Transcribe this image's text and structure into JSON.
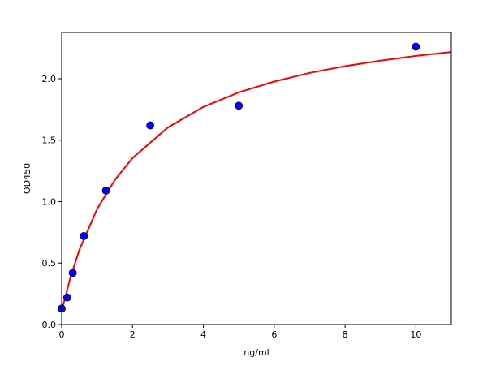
{
  "chart_data": {
    "type": "scatter",
    "title": "",
    "xlabel": "ng/ml",
    "ylabel": "OD450",
    "xlim": [
      0,
      11
    ],
    "ylim": [
      0,
      2.376
    ],
    "xticks": [
      0,
      2,
      4,
      6,
      8,
      10
    ],
    "yticks": [
      0.0,
      0.5,
      1.0,
      1.5,
      2.0
    ],
    "xtick_labels": [
      "0",
      "2",
      "4",
      "6",
      "8",
      "10"
    ],
    "ytick_labels": [
      "0.0",
      "0.5",
      "1.0",
      "1.5",
      "2.0"
    ],
    "grid": false,
    "series": [
      {
        "type": "scatter",
        "color": "#0000ff",
        "x": [
          0,
          0.156,
          0.3125,
          0.625,
          1.25,
          2.5,
          5,
          10
        ],
        "y": [
          0.13,
          0.22,
          0.42,
          0.72,
          1.09,
          1.62,
          1.78,
          2.26
        ]
      },
      {
        "type": "line",
        "color": "#ff0000",
        "x": [
          0,
          0.25,
          0.5,
          1,
          1.5,
          2,
          3,
          4,
          5,
          6,
          7,
          8,
          9,
          10,
          11
        ],
        "y": [
          0.11,
          0.387,
          0.608,
          0.94,
          1.177,
          1.355,
          1.604,
          1.77,
          1.889,
          1.977,
          2.047,
          2.102,
          2.147,
          2.185,
          2.217
        ]
      }
    ]
  }
}
